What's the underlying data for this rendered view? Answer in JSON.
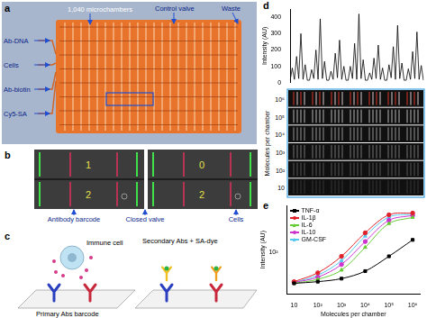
{
  "figure": {
    "panel_labels": [
      "a",
      "b",
      "c",
      "d",
      "e"
    ],
    "a": {
      "title": "1,040 microchambers",
      "control_valve": "Control valve",
      "waste": "Waste",
      "inlets": [
        "Ab-DNA",
        "Cells",
        "Ab-biotin",
        "Cy5-SA"
      ]
    },
    "b": {
      "barcodes": [
        "1",
        "0",
        "2",
        "2"
      ],
      "captions": [
        "Antibody barcode",
        "Closed valve",
        "Cells"
      ]
    },
    "c": {
      "cell": "Immune cell",
      "secondary": "Secondary Abs + SA-dye",
      "primary": "Primary Abs barcode"
    },
    "d_image": {
      "ylabel": "Molecules per chamber",
      "rows": [
        {
          "value": 1000000,
          "label": "10⁶"
        },
        {
          "value": 100000,
          "label": "10⁵"
        },
        {
          "value": 10000,
          "label": "10⁴"
        },
        {
          "value": 1000,
          "label": "10³"
        },
        {
          "value": 100,
          "label": "10²"
        },
        10
      ]
    }
  },
  "chart_data": [
    {
      "type": "line",
      "ylabel": "Intensity (AU)",
      "color": "#000000",
      "grid": false,
      "tick_labels": "y",
      "ylim": [
        0,
        450
      ],
      "yticks": [
        0,
        100,
        200,
        300,
        400
      ],
      "categories": [
        null,
        null,
        null,
        null,
        null,
        null,
        null,
        null,
        null,
        null,
        null,
        null,
        null,
        null,
        null,
        null,
        null,
        null,
        null,
        null,
        null,
        null,
        null,
        null,
        null,
        null,
        null,
        null,
        null,
        null,
        null,
        null,
        null,
        null,
        null,
        null,
        null,
        null,
        null,
        null,
        null,
        null,
        null,
        null,
        null,
        null,
        null,
        null,
        null,
        null,
        null,
        null,
        null,
        null,
        null,
        null,
        null,
        null,
        null,
        null,
        null,
        null,
        null
      ],
      "values": [
        15,
        90,
        20,
        160,
        25,
        300,
        20,
        110,
        15,
        15,
        80,
        25,
        200,
        20,
        390,
        25,
        130,
        15,
        15,
        70,
        20,
        180,
        30,
        260,
        20,
        100,
        15,
        15,
        100,
        25,
        240,
        20,
        420,
        25,
        140,
        15,
        15,
        60,
        20,
        150,
        25,
        230,
        20,
        90,
        15,
        15,
        110,
        30,
        220,
        20,
        350,
        25,
        120,
        15,
        15,
        85,
        20,
        190,
        25,
        310,
        20,
        105,
        15
      ]
    },
    {
      "type": "line",
      "log": true,
      "grid": false,
      "legend": "top-left",
      "xlabel": "Molecules per chamber",
      "ylabel": "Intensity (AU)",
      "x": [
        10,
        100,
        1000,
        10000,
        100000,
        1000000
      ],
      "xlim": [
        5,
        2000000
      ],
      "xticks": [
        10,
        {
          "value": 100,
          "label": "10²"
        },
        {
          "value": 1000,
          "label": "10³"
        },
        {
          "value": 10000,
          "label": "10⁴"
        },
        {
          "value": 100000,
          "label": "10⁵"
        },
        {
          "value": 1000000,
          "label": "10⁶"
        }
      ],
      "ylim": [
        20,
        600
      ],
      "yticks": [
        {
          "value": 100,
          "label": "10²"
        }
      ],
      "series": [
        {
          "name": "TNF-α",
          "color": "#000000",
          "marker": "square",
          "values": [
            30,
            32,
            36,
            48,
            85,
            160
          ]
        },
        {
          "name": "IL-1β",
          "color": "#e0202a",
          "marker": "circle",
          "values": [
            32,
            45,
            85,
            210,
            420,
            450
          ]
        },
        {
          "name": "IL-6",
          "color": "#66cc33",
          "marker": "triangle",
          "values": [
            30,
            35,
            50,
            120,
            300,
            380
          ]
        },
        {
          "name": "IL-10",
          "color": "#cc33cc",
          "marker": "circle",
          "values": [
            31,
            38,
            62,
            150,
            340,
            410
          ]
        },
        {
          "name": "GM-CSF",
          "color": "#55c8f0",
          "marker": "triangle",
          "values": [
            31,
            41,
            72,
            185,
            385,
            430
          ]
        }
      ]
    }
  ]
}
